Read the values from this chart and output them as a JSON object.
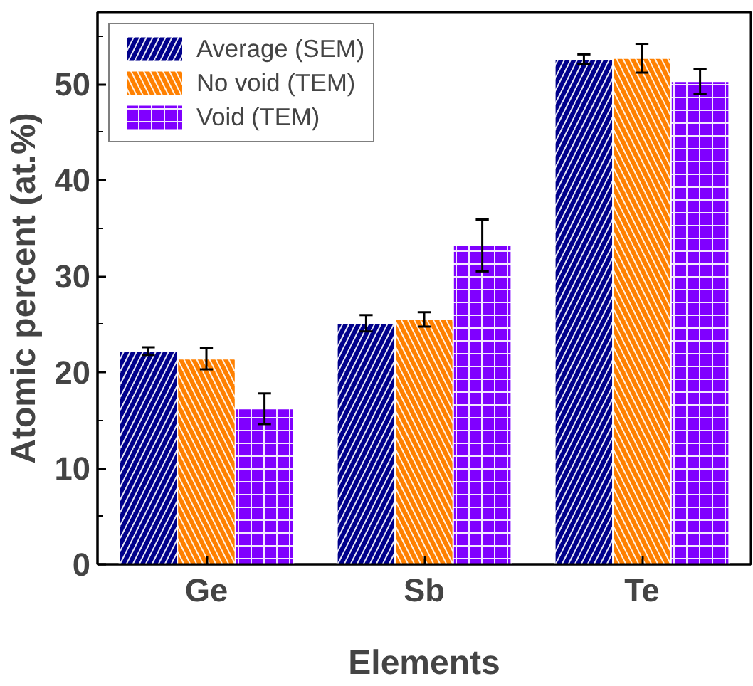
{
  "chart_data": {
    "type": "bar",
    "xlabel": "Elements",
    "ylabel": "Atomic percent (at.%)",
    "categories": [
      "Ge",
      "Sb",
      "Te"
    ],
    "series": [
      {
        "name": "Average (SEM)",
        "color": "#00008b",
        "values": [
          22.2,
          25.1,
          52.6
        ],
        "errors": [
          0.4,
          0.85,
          0.5
        ]
      },
      {
        "name": "No void (TEM)",
        "color": "#ff8000",
        "values": [
          21.4,
          25.5,
          52.7
        ],
        "errors": [
          1.1,
          0.75,
          1.5
        ]
      },
      {
        "name": "Void (TEM)",
        "color": "#8000ff",
        "values": [
          16.2,
          33.2,
          50.3
        ],
        "errors": [
          1.6,
          2.7,
          1.3
        ]
      }
    ],
    "ylim": [
      0,
      57.5
    ],
    "yticks": [
      0,
      10,
      20,
      30,
      40,
      50
    ],
    "grid": false,
    "legend": "top left"
  }
}
